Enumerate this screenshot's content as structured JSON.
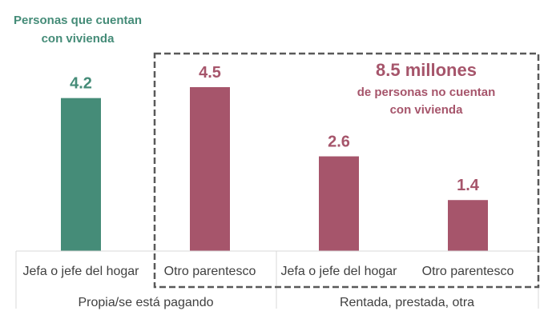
{
  "chart_data": {
    "type": "bar",
    "title": "",
    "xlabel": "",
    "ylabel": "",
    "ylim": [
      0,
      4.5
    ],
    "categories": [
      "Jefa o jefe del hogar",
      "Otro parentesco",
      "Jefa o jefe del hogar",
      "Otro parentesco"
    ],
    "groups": [
      {
        "label": "Propia/se está pagando",
        "span": [
          0,
          1
        ]
      },
      {
        "label": "Rentada, prestada, otra",
        "span": [
          2,
          3
        ]
      }
    ],
    "values": [
      4.2,
      4.5,
      2.6,
      1.4
    ],
    "value_labels": [
      "4.2",
      "4.5",
      "2.6",
      "1.4"
    ],
    "bar_colors": [
      "#458C78",
      "#A6556B",
      "#A6556B",
      "#A6556B"
    ],
    "annotations": {
      "with_housing": "Personas que cuentan con vivienda",
      "with_housing_lines": [
        "Personas que cuentan",
        "con vivienda"
      ],
      "without_housing_total": "8.5 millones",
      "without_housing_lines": [
        "de personas no cuentan",
        "con vivienda"
      ]
    },
    "colors": {
      "green": "#458C78",
      "maroon": "#A6556B",
      "axis": "#D9D9D9",
      "box": "#595959"
    }
  }
}
